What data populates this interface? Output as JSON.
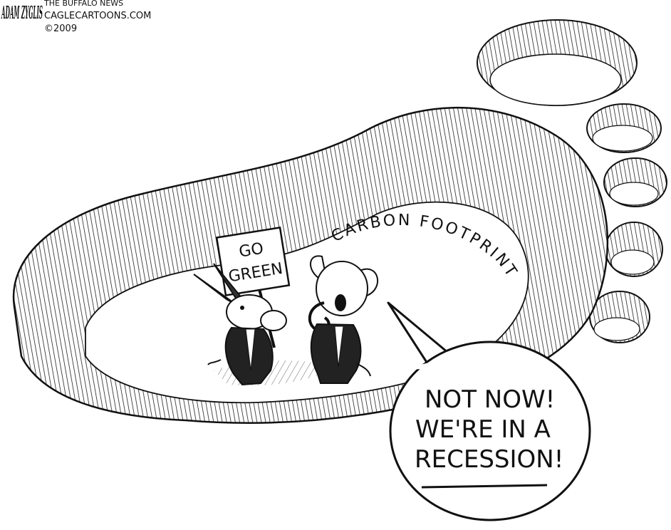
{
  "signature": {
    "artist": "ADAM ZYGLIS",
    "publication": "THE BUFFALO NEWS",
    "website": "CAGLECARTOONS.COM",
    "copyright": "©2009"
  },
  "sign_text": {
    "line1": "GO",
    "line2": "GREEN"
  },
  "footprint_label": "CARBON FOOTPRINT",
  "speech_bubble": {
    "line1": "NOT NOW!",
    "line2": "WE'RE IN A",
    "line3": "RECESSION!"
  },
  "colors": {
    "ink": "#111111",
    "paper": "#ffffff",
    "shade": "#cfcfcf"
  }
}
